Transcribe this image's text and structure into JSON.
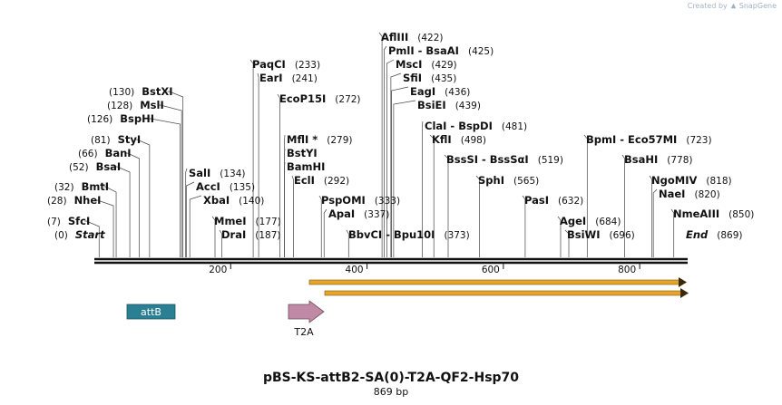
{
  "watermark": {
    "created_by": "Created by",
    "brand": "SnapGene"
  },
  "plasmid": {
    "name": "pBS-KS-attB2-SA(0)-T2A-QF2-Hsp70",
    "length_label": "869 bp",
    "length": 869
  },
  "colors": {
    "backbone": "#111111",
    "attB": "#2a7f93",
    "t2a": "#c08aa6",
    "orf": "#e6a52a"
  },
  "ruler": {
    "ticks": [
      {
        "value": 200,
        "label": "200"
      },
      {
        "value": 400,
        "label": "400"
      },
      {
        "value": 600,
        "label": "600"
      },
      {
        "value": 800,
        "label": "800"
      }
    ]
  },
  "features": [
    {
      "name": "attB",
      "type": "box",
      "label": "attB"
    },
    {
      "name": "T2A",
      "type": "arrow",
      "label": "T2A"
    },
    {
      "name": "orf-1",
      "type": "orf",
      "label": ""
    },
    {
      "name": "orf-2",
      "type": "orf",
      "label": ""
    }
  ],
  "sites": [
    {
      "id": "start",
      "label": "Start",
      "pos": "(0)",
      "bp": 0,
      "italic": true
    },
    {
      "id": "sfci",
      "label": "SfcI",
      "pos": "(7)",
      "bp": 7
    },
    {
      "id": "nhei",
      "label": "NheI",
      "pos": "(28)",
      "bp": 28
    },
    {
      "id": "bmti",
      "label": "BmtI",
      "pos": "(32)",
      "bp": 32
    },
    {
      "id": "bsai",
      "label": "BsaI",
      "pos": "(52)",
      "bp": 52
    },
    {
      "id": "bani",
      "label": "BanI",
      "pos": "(66)",
      "bp": 66
    },
    {
      "id": "styi",
      "label": "StyI",
      "pos": "(81)",
      "bp": 81
    },
    {
      "id": "bsphi",
      "label": "BspHI",
      "pos": "(126)",
      "bp": 126
    },
    {
      "id": "msli",
      "label": "MslI",
      "pos": "(128)",
      "bp": 128
    },
    {
      "id": "bstxi",
      "label": "BstXI",
      "pos": "(130)",
      "bp": 130
    },
    {
      "id": "sali",
      "label": "SalI",
      "pos": "(134)",
      "bp": 134
    },
    {
      "id": "acci",
      "label": "AccI",
      "pos": "(135)",
      "bp": 135
    },
    {
      "id": "xbai",
      "label": "XbaI",
      "pos": "(140)",
      "bp": 140
    },
    {
      "id": "mmei",
      "label": "MmeI",
      "pos": "(177)",
      "bp": 177
    },
    {
      "id": "drai",
      "label": "DraI",
      "pos": "(187)",
      "bp": 187
    },
    {
      "id": "paqci",
      "label": "PaqCI",
      "pos": "(233)",
      "bp": 233
    },
    {
      "id": "eari",
      "label": "EarI",
      "pos": "(241)",
      "bp": 241
    },
    {
      "id": "ecop15i",
      "label": "EcoP15I",
      "pos": "(272)",
      "bp": 272
    },
    {
      "id": "mfli",
      "label": "MflI *",
      "pos": "(279)",
      "bp": 279
    },
    {
      "id": "bstyi",
      "label": "BstYI",
      "pos": "",
      "bp": 279
    },
    {
      "id": "bamhi",
      "label": "BamHI",
      "pos": "",
      "bp": 279
    },
    {
      "id": "ecli",
      "label": "EclI",
      "pos": "(292)",
      "bp": 292
    },
    {
      "id": "pspomi",
      "label": "PspOMI",
      "pos": "(333)",
      "bp": 333
    },
    {
      "id": "apai",
      "label": "ApaI",
      "pos": "(337)",
      "bp": 337
    },
    {
      "id": "bbvci",
      "label": "BbvCI  -  Bpu10I",
      "pos": "(373)",
      "bp": 373
    },
    {
      "id": "aflIII",
      "label": "AflIII",
      "pos": "(422)",
      "bp": 422
    },
    {
      "id": "pmli",
      "label": "PmlI  -  BsaAI",
      "pos": "(425)",
      "bp": 425
    },
    {
      "id": "msci",
      "label": "MscI",
      "pos": "(429)",
      "bp": 429
    },
    {
      "id": "sfii",
      "label": "SfiI",
      "pos": "(435)",
      "bp": 435
    },
    {
      "id": "eagi",
      "label": "EagI",
      "pos": "(436)",
      "bp": 436
    },
    {
      "id": "bsiei",
      "label": "BsiEI",
      "pos": "(439)",
      "bp": 439
    },
    {
      "id": "clai",
      "label": "ClaI  -  BspDI",
      "pos": "(481)",
      "bp": 481
    },
    {
      "id": "kfli",
      "label": "KflI",
      "pos": "(498)",
      "bp": 498
    },
    {
      "id": "bsssi",
      "label": "BssSI  -  BssSαI",
      "pos": "(519)",
      "bp": 519
    },
    {
      "id": "sphi",
      "label": "SphI",
      "pos": "(565)",
      "bp": 565
    },
    {
      "id": "pasi",
      "label": "PasI",
      "pos": "(632)",
      "bp": 632
    },
    {
      "id": "agei",
      "label": "AgeI",
      "pos": "(684)",
      "bp": 684
    },
    {
      "id": "bsiwi",
      "label": "BsiWI",
      "pos": "(696)",
      "bp": 696
    },
    {
      "id": "bpmi",
      "label": "BpmI  -  Eco57MI",
      "pos": "(723)",
      "bp": 723
    },
    {
      "id": "bsahi",
      "label": "BsaHI",
      "pos": "(778)",
      "bp": 778
    },
    {
      "id": "ngomiv",
      "label": "NgoMIV",
      "pos": "(818)",
      "bp": 818
    },
    {
      "id": "naei",
      "label": "NaeI",
      "pos": "(820)",
      "bp": 820
    },
    {
      "id": "nmeaiii",
      "label": "NmeAIII",
      "pos": "(850)",
      "bp": 850
    },
    {
      "id": "end",
      "label": "End",
      "pos": "(869)",
      "bp": 869,
      "italic": true
    }
  ]
}
